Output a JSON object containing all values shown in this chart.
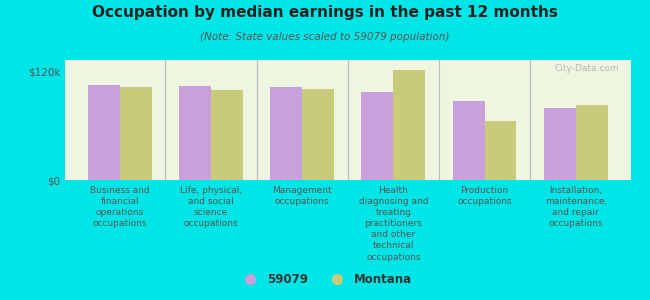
{
  "title": "Occupation by median earnings in the past 12 months",
  "subtitle": "(Note: State values scaled to 59079 population)",
  "background_color": "#00e5e5",
  "plot_bg_color": "#eef5e0",
  "bar_color_59079": "#c9a0dc",
  "bar_color_montana": "#c8cc7a",
  "categories": [
    "Business and\nfinancial\noperations\noccupations",
    "Life, physical,\nand social\nscience\noccupations",
    "Management\noccupations",
    "Health\ndiagnosing and\ntreating\npractitioners\nand other\ntechnical\noccupations",
    "Production\noccupations",
    "Installation,\nmaintenance,\nand repair\noccupations"
  ],
  "values_59079": [
    105000,
    104000,
    103000,
    97000,
    88000,
    80000
  ],
  "values_montana": [
    103000,
    100000,
    101000,
    122000,
    65000,
    83000
  ],
  "yticks": [
    0,
    120000
  ],
  "ytick_labels": [
    "$0",
    "$120k"
  ],
  "legend_labels": [
    "59079",
    "Montana"
  ],
  "watermark": "City-Data.com"
}
